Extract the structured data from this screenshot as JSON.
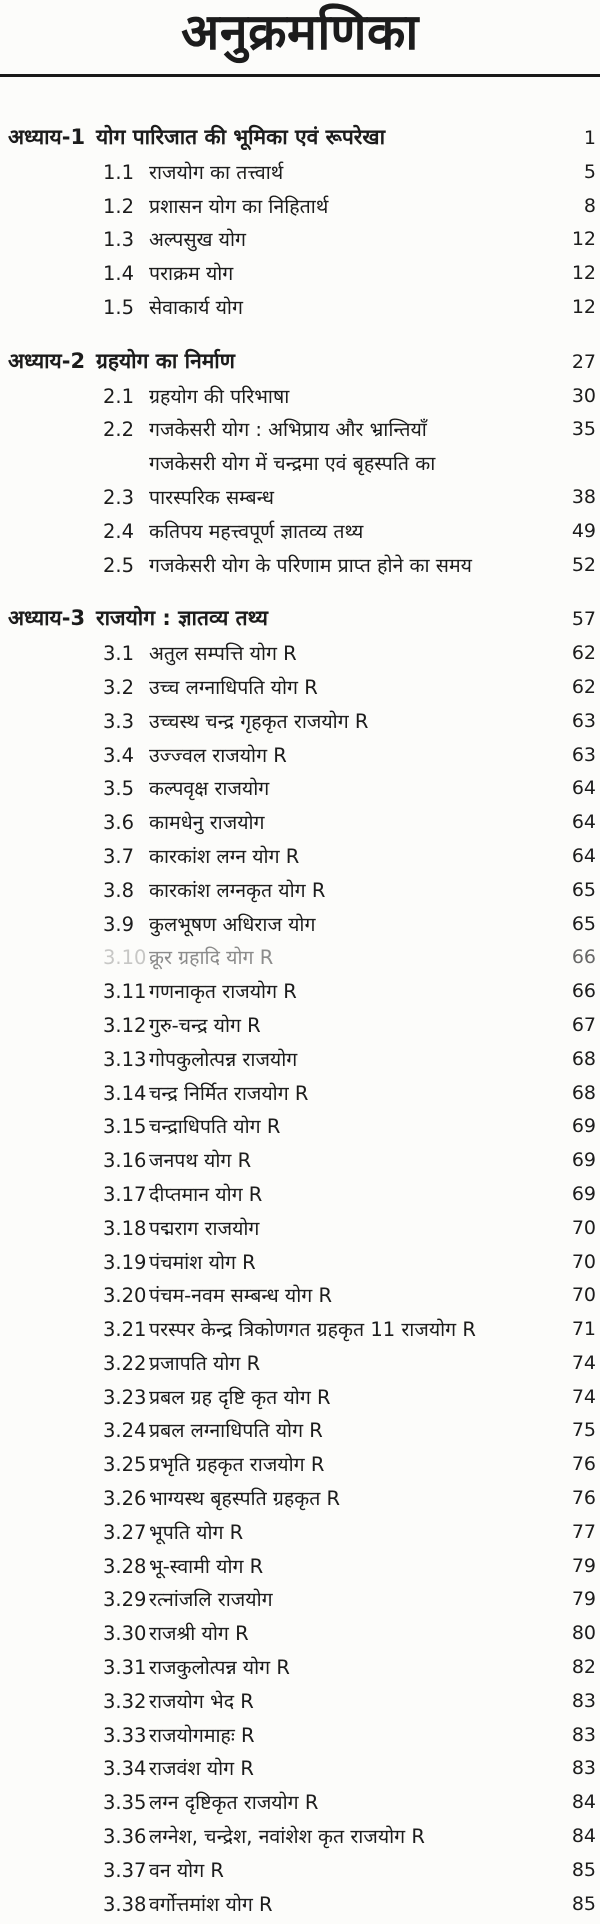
{
  "page_title": "अनुक्रमणिका",
  "colors": {
    "ink": "#1c1c1c",
    "paper": "#fcfcfa"
  },
  "toc": {
    "chapters": [
      {
        "label": "अध्याय-1",
        "title": "योग पारिजात की भूमिका एवं रूपरेखा",
        "page": "1",
        "sections": [
          {
            "num": "1.1",
            "title": "राजयोग का तत्त्वार्थ",
            "page": "5"
          },
          {
            "num": "1.2",
            "title": "प्रशासन योग का निहितार्थ",
            "page": "8"
          },
          {
            "num": "1.3",
            "title": "अल्पसुख योग",
            "page": "12"
          },
          {
            "num": "1.4",
            "title": "पराक्रम योग",
            "page": "12"
          },
          {
            "num": "1.5",
            "title": "सेवाकार्य योग",
            "page": "12"
          }
        ]
      },
      {
        "label": "अध्याय-2",
        "title": "ग्रहयोग का निर्माण",
        "page": "27",
        "sections": [
          {
            "num": "2.1",
            "title": "ग्रहयोग की परिभाषा",
            "page": "30"
          },
          {
            "num": "2.2",
            "title": "गजकेसरी योग : अभिप्राय और भ्रान्तियाँ",
            "page": "35"
          },
          {
            "num": "2.3",
            "title": "गजकेसरी योग में चन्द्रमा एवं बृहस्पति का",
            "title_line2": "पारस्परिक सम्बन्ध",
            "page": "38"
          },
          {
            "num": "2.4",
            "title": "कतिपय महत्त्वपूर्ण ज्ञातव्य तथ्य",
            "page": "49"
          },
          {
            "num": "2.5",
            "title": "गजकेसरी योग के परिणाम प्राप्त होने का समय",
            "page": "52"
          }
        ]
      },
      {
        "label": "अध्याय-3",
        "title": "राजयोग : ज्ञातव्य तथ्य",
        "page": "57",
        "sections": [
          {
            "num": "3.1",
            "title": "अतुल सम्पत्ति योग R",
            "page": "62"
          },
          {
            "num": "3.2",
            "title": "उच्च लग्नाधिपति योग R",
            "page": "62"
          },
          {
            "num": "3.3",
            "title": "उच्चस्थ चन्द्र गृहकृत राजयोग R",
            "page": "63"
          },
          {
            "num": "3.4",
            "title": "उज्ज्वल राजयोग R",
            "page": "63"
          },
          {
            "num": "3.5",
            "title": "कल्पवृक्ष राजयोग",
            "page": "64"
          },
          {
            "num": "3.6",
            "title": "कामधेनु राजयोग",
            "page": "64"
          },
          {
            "num": "3.7",
            "title": "कारकांश लग्न योग R",
            "page": "64"
          },
          {
            "num": "3.8",
            "title": "कारकांश लग्नकृत योग R",
            "page": "65"
          },
          {
            "num": "3.9",
            "title": "कुलभूषण अधिराज योग",
            "page": "65"
          },
          {
            "num": "3.10",
            "title": "क्रूर ग्रहादि योग R",
            "page": "66",
            "faded": true
          },
          {
            "num": "3.11",
            "title": "गणनाकृत राजयोग R",
            "page": "66"
          },
          {
            "num": "3.12",
            "title": "गुरु-चन्द्र योग R",
            "page": "67"
          },
          {
            "num": "3.13",
            "title": "गोपकुलोत्पन्न राजयोग",
            "page": "68"
          },
          {
            "num": "3.14",
            "title": "चन्द्र निर्मित राजयोग R",
            "page": "68"
          },
          {
            "num": "3.15",
            "title": "चन्द्राधिपति योग R",
            "page": "69"
          },
          {
            "num": "3.16",
            "title": "जनपथ योग R",
            "page": "69"
          },
          {
            "num": "3.17",
            "title": "दीप्तमान योग R",
            "page": "69"
          },
          {
            "num": "3.18",
            "title": "पद्मराग राजयोग",
            "page": "70"
          },
          {
            "num": "3.19",
            "title": "पंचमांश योग R",
            "page": "70"
          },
          {
            "num": "3.20",
            "title": "पंचम-नवम सम्बन्ध योग R",
            "page": "70"
          },
          {
            "num": "3.21",
            "title": "परस्पर केन्द्र त्रिकोणगत ग्रहकृत 11 राजयोग R",
            "page": "71"
          },
          {
            "num": "3.22",
            "title": "प्रजापति योग R",
            "page": "74"
          },
          {
            "num": "3.23",
            "title": "प्रबल ग्रह दृष्टि कृत योग R",
            "page": "74"
          },
          {
            "num": "3.24",
            "title": "प्रबल लग्नाधिपति योग R",
            "page": "75"
          },
          {
            "num": "3.25",
            "title": "प्रभृति ग्रहकृत राजयोग R",
            "page": "76"
          },
          {
            "num": "3.26",
            "title": "भाग्यस्थ बृहस्पति ग्रहकृत R",
            "page": "76"
          },
          {
            "num": "3.27",
            "title": "भूपति योग R",
            "page": "77"
          },
          {
            "num": "3.28",
            "title": "भू-स्वामी योग R",
            "page": "79"
          },
          {
            "num": "3.29",
            "title": "रत्नांजलि राजयोग",
            "page": "79"
          },
          {
            "num": "3.30",
            "title": "राजश्री योग R",
            "page": "80"
          },
          {
            "num": "3.31",
            "title": "राजकुलोत्पन्न योग R",
            "page": "82"
          },
          {
            "num": "3.32",
            "title": "राजयोग भेद R",
            "page": "83"
          },
          {
            "num": "3.33",
            "title": "राजयोगमाहः R",
            "page": "83"
          },
          {
            "num": "3.34",
            "title": "राजवंश योग R",
            "page": "83"
          },
          {
            "num": "3.35",
            "title": "लग्न दृष्टिकृत राजयोग R",
            "page": "84"
          },
          {
            "num": "3.36",
            "title": "लग्नेश, चन्द्रेश, नवांशेश कृत राजयोग R",
            "page": "84"
          },
          {
            "num": "3.37",
            "title": "वन योग R",
            "page": "85"
          },
          {
            "num": "3.38",
            "title": "वर्गोत्तमांश योग R",
            "page": "85"
          }
        ]
      }
    ]
  }
}
